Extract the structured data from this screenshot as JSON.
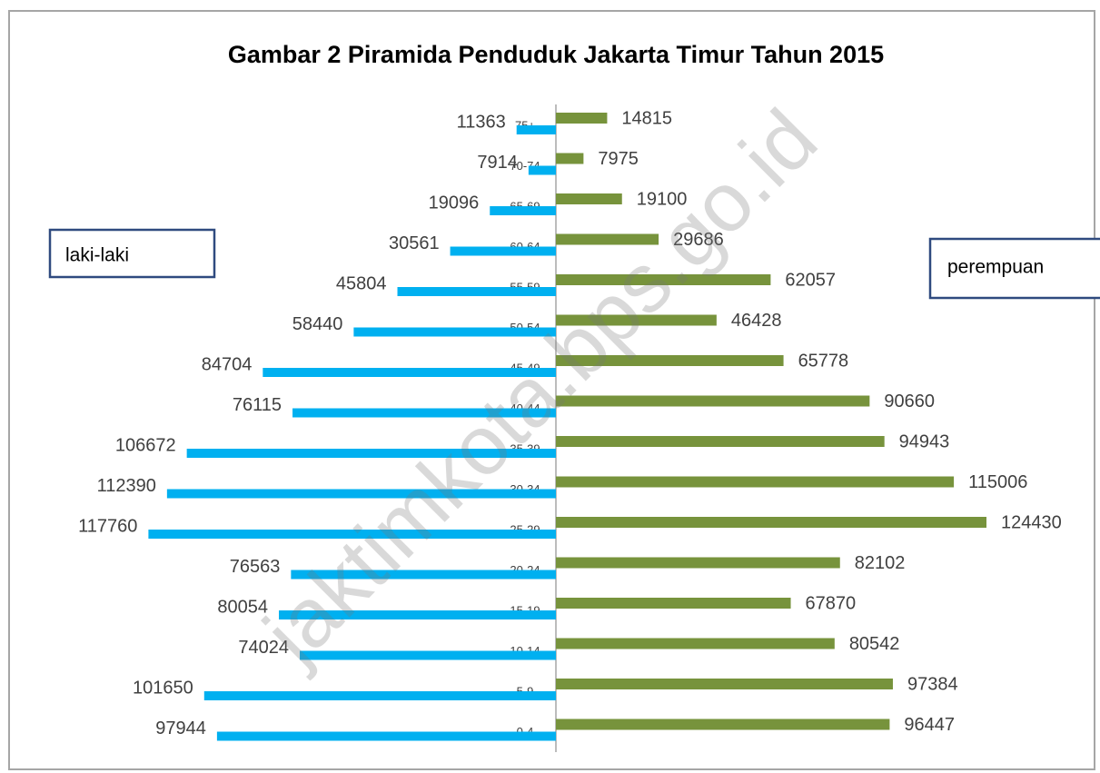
{
  "chart_data": {
    "type": "pyramid",
    "title": "Gambar 2  Piramida Penduduk Jakarta Timur Tahun 2015",
    "watermark": "jaktimkota.bps.go.id",
    "categories": [
      "75+",
      "70-74",
      "65-69",
      "60-64",
      "55-59",
      "50-54",
      "45-49",
      "40-44",
      "35-39",
      "30-34",
      "25-29",
      "20-24",
      "15-19",
      "10-14",
      "5-9",
      "0-4"
    ],
    "series": [
      {
        "name": "laki-laki",
        "color": "#00b0f0",
        "side": "left",
        "values": [
          11363,
          7914,
          19096,
          30561,
          45804,
          58440,
          84704,
          76115,
          106672,
          112390,
          117760,
          76563,
          80054,
          74024,
          101650,
          97944
        ]
      },
      {
        "name": "perempuan",
        "color": "#77933c",
        "side": "right",
        "values": [
          14815,
          7975,
          19100,
          29686,
          62057,
          46428,
          65778,
          90660,
          94943,
          115006,
          124430,
          82102,
          67870,
          80542,
          97384,
          96447
        ]
      }
    ]
  }
}
